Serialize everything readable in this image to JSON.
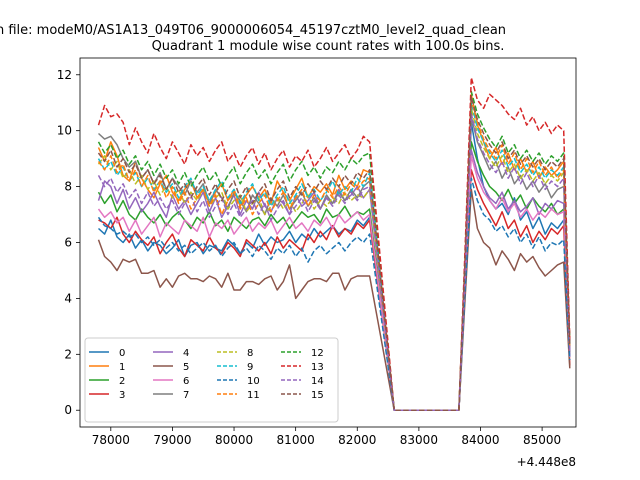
{
  "chart_data": {
    "type": "line",
    "suptitle": "n file: modeM0/AS1A13_049T06_9000006054_45197cztM0_level2_quad_clean",
    "title": "Quadrant 1 module wise count rates with 100.0s bins.",
    "xlabel": "",
    "ylabel": "",
    "x_offset_label": "+4.448e8",
    "xlim": [
      77500,
      85550
    ],
    "ylim": [
      -0.6,
      12.6
    ],
    "xticks": [
      78000,
      79000,
      80000,
      81000,
      82000,
      83000,
      84000,
      85000
    ],
    "xtick_labels": [
      "78000",
      "79000",
      "80000",
      "81000",
      "82000",
      "83000",
      "84000",
      "85000"
    ],
    "yticks": [
      0,
      2,
      4,
      6,
      8,
      10,
      12
    ],
    "ytick_labels": [
      "0",
      "2",
      "4",
      "6",
      "8",
      "10",
      "12"
    ],
    "grid": false,
    "legend_position": "lower-left",
    "legend_columns": 4,
    "x_start": 77800,
    "x_step": 100,
    "gap_start": 82600,
    "gap_end": 83650,
    "series": [
      {
        "name": "0",
        "color": "#1f77b4",
        "dash": "solid",
        "values1": [
          6.5,
          6.3,
          6.8,
          6.2,
          6.0,
          6.3,
          5.8,
          6.1,
          5.7,
          6.0,
          5.9,
          5.6,
          5.8,
          6.1,
          5.5,
          5.9,
          6.0,
          5.6,
          5.9,
          5.8,
          5.7,
          6.1,
          5.9,
          5.6,
          6.0,
          5.8,
          6.3,
          5.9,
          6.2,
          6.0,
          6.1,
          6.4,
          6.0,
          6.3,
          6.1,
          6.5,
          6.2,
          6.4,
          6.6,
          6.3,
          6.5,
          6.4,
          6.8,
          6.6,
          6.9
        ],
        "values2": [
          4.5,
          10.3,
          9.0,
          8.0,
          7.5,
          7.2,
          7.4,
          7.0,
          7.6,
          6.8,
          7.1,
          6.5,
          6.9,
          6.3,
          6.7,
          6.5,
          6.8,
          2.0
        ]
      },
      {
        "name": "1",
        "color": "#ff7f0e",
        "dash": "solid",
        "values1": [
          9.4,
          8.9,
          9.6,
          9.1,
          8.4,
          8.2,
          8.9,
          8.3,
          7.9,
          7.6,
          8.1,
          8.4,
          7.8,
          7.5,
          7.9,
          8.2,
          7.6,
          7.9,
          7.4,
          7.8,
          8.1,
          7.5,
          7.9,
          7.3,
          7.7,
          8.0,
          7.6,
          7.9,
          7.4,
          8.2,
          7.8,
          7.5,
          7.9,
          8.3,
          7.6,
          8.0,
          7.8,
          8.1,
          7.7,
          8.4,
          7.9,
          8.2,
          8.0,
          8.6,
          8.5
        ],
        "values2": [
          5.4,
          11.3,
          10.2,
          9.6,
          9.0,
          9.4,
          8.8,
          9.2,
          8.6,
          9.0,
          8.5,
          8.9,
          8.3,
          8.7,
          8.4,
          8.6,
          8.9,
          2.3
        ]
      },
      {
        "name": "2",
        "color": "#2ca02c",
        "dash": "solid",
        "values1": [
          7.8,
          7.4,
          7.7,
          7.1,
          7.5,
          7.0,
          6.8,
          7.2,
          6.9,
          6.7,
          7.0,
          6.6,
          6.9,
          7.1,
          6.8,
          6.5,
          6.9,
          6.7,
          7.1,
          6.6,
          6.8,
          6.4,
          6.9,
          6.7,
          6.5,
          6.8,
          6.9,
          6.6,
          7.0,
          6.7,
          6.9,
          6.5,
          6.8,
          7.1,
          6.9,
          7.0,
          6.7,
          7.2,
          6.9,
          7.0,
          7.3,
          6.9,
          7.1,
          7.0,
          7.2
        ],
        "values2": [
          4.6,
          9.6,
          8.9,
          8.4,
          8.0,
          7.8,
          7.5,
          7.9,
          7.4,
          7.7,
          7.2,
          7.6,
          7.3,
          7.1,
          7.4,
          7.0,
          7.2,
          2.0
        ]
      },
      {
        "name": "3",
        "color": "#d62728",
        "dash": "solid",
        "values1": [
          6.8,
          6.7,
          6.5,
          6.9,
          6.3,
          6.0,
          6.4,
          6.1,
          5.9,
          6.2,
          5.6,
          6.0,
          6.3,
          5.8,
          5.5,
          6.1,
          5.9,
          5.7,
          6.2,
          5.8,
          5.6,
          6.0,
          5.8,
          5.5,
          6.1,
          5.9,
          5.7,
          6.0,
          5.6,
          6.2,
          5.8,
          6.1,
          5.9,
          5.7,
          6.3,
          6.0,
          6.4,
          6.1,
          6.6,
          6.2,
          6.5,
          6.3,
          6.7,
          6.5,
          6.8
        ],
        "values2": [
          4.6,
          8.6,
          7.9,
          7.4,
          7.0,
          6.6,
          7.1,
          6.5,
          6.8,
          6.2,
          6.6,
          6.0,
          6.4,
          6.1,
          6.5,
          6.3,
          6.6,
          1.6
        ]
      },
      {
        "name": "4",
        "color": "#9467bd",
        "dash": "solid",
        "values1": [
          7.5,
          8.2,
          8.0,
          7.4,
          7.9,
          7.2,
          7.6,
          7.1,
          7.4,
          7.8,
          7.3,
          6.9,
          7.7,
          7.2,
          7.5,
          7.0,
          7.4,
          7.8,
          7.1,
          7.6,
          6.9,
          7.3,
          7.7,
          7.0,
          7.5,
          7.2,
          7.8,
          7.3,
          7.1,
          7.6,
          7.4,
          7.0,
          7.7,
          7.3,
          7.5,
          7.8,
          7.2,
          7.6,
          7.4,
          7.9,
          7.5,
          7.7,
          8.0,
          7.6,
          7.9
        ],
        "values2": [
          4.7,
          9.3,
          8.5,
          8.0,
          7.6,
          7.4,
          7.8,
          7.2,
          7.5,
          7.1,
          7.3,
          7.6,
          7.0,
          7.4,
          7.2,
          7.5,
          7.4,
          1.9
        ]
      },
      {
        "name": "5",
        "color": "#8c564b",
        "dash": "solid",
        "values1": [
          6.1,
          5.5,
          5.3,
          5.0,
          5.4,
          5.3,
          5.4,
          4.9,
          4.9,
          5.0,
          4.4,
          4.7,
          4.4,
          4.8,
          4.9,
          4.7,
          4.7,
          4.6,
          4.8,
          4.7,
          4.4,
          4.9,
          4.3,
          4.3,
          4.6,
          4.6,
          4.5,
          4.7,
          4.8,
          4.3,
          4.6,
          5.2,
          4.0,
          4.3,
          4.6,
          4.7,
          4.7,
          4.6,
          4.9,
          4.9,
          4.3,
          4.7,
          4.8,
          4.8,
          4.8
        ],
        "values2": [
          4.0,
          7.9,
          6.5,
          6.0,
          5.8,
          5.2,
          5.7,
          5.4,
          5.0,
          5.6,
          5.3,
          5.5,
          5.1,
          4.8,
          5.0,
          5.2,
          5.3,
          1.5
        ]
      },
      {
        "name": "6",
        "color": "#e377c2",
        "dash": "solid",
        "values1": [
          7.2,
          6.9,
          7.1,
          6.7,
          6.9,
          6.4,
          6.8,
          6.3,
          6.6,
          6.9,
          6.2,
          6.7,
          6.5,
          6.3,
          6.8,
          6.6,
          6.4,
          6.9,
          6.2,
          6.7,
          6.5,
          6.8,
          6.3,
          6.6,
          6.9,
          6.4,
          6.7,
          6.5,
          6.8,
          6.3,
          6.6,
          6.9,
          6.5,
          6.7,
          6.4,
          6.8,
          6.6,
          6.9,
          6.5,
          7.0,
          6.7,
          6.9,
          7.1,
          6.8,
          7.0
        ],
        "values2": [
          4.6,
          9.1,
          8.3,
          7.8,
          7.5,
          7.2,
          7.6,
          7.1,
          7.4,
          6.9,
          7.2,
          6.8,
          7.1,
          6.9,
          7.2,
          7.0,
          7.1,
          1.9
        ]
      },
      {
        "name": "7",
        "color": "#7f7f7f",
        "dash": "solid",
        "values1": [
          9.9,
          9.7,
          9.8,
          9.5,
          9.0,
          8.7,
          8.9,
          8.3,
          8.6,
          8.1,
          8.5,
          7.9,
          8.3,
          8.0,
          7.7,
          8.2,
          7.8,
          8.1,
          7.4,
          7.9,
          7.6,
          7.2,
          7.8,
          7.5,
          7.1,
          7.7,
          7.4,
          7.0,
          7.6,
          7.3,
          7.7,
          7.2,
          7.5,
          7.8,
          7.3,
          7.6,
          7.2,
          7.7,
          7.4,
          7.8,
          7.5,
          7.9,
          7.6,
          8.0,
          8.2
        ],
        "values2": [
          5.2,
          10.5,
          9.6,
          9.1,
          8.6,
          8.9,
          8.3,
          8.7,
          8.1,
          8.4,
          7.9,
          8.2,
          7.8,
          8.1,
          7.6,
          7.9,
          8.0,
          2.1
        ]
      },
      {
        "name": "8",
        "color": "#bcbd22",
        "dash": "dashed",
        "values1": [
          8.8,
          9.1,
          8.6,
          8.9,
          8.3,
          8.6,
          8.1,
          8.4,
          7.9,
          8.2,
          7.7,
          8.0,
          7.6,
          7.9,
          7.4,
          7.8,
          7.5,
          7.9,
          7.3,
          7.6,
          7.8,
          7.2,
          7.5,
          7.7,
          7.1,
          7.4,
          7.6,
          7.0,
          7.3,
          7.6,
          7.2,
          7.5,
          7.1,
          7.4,
          7.7,
          7.2,
          7.5,
          7.3,
          7.6,
          7.4,
          7.8,
          7.5,
          7.7,
          7.6,
          7.9
        ],
        "values2": [
          5.1,
          10.8,
          9.9,
          9.4,
          9.0,
          8.7,
          9.1,
          8.5,
          8.8,
          8.3,
          8.6,
          8.2,
          8.5,
          8.1,
          8.4,
          8.2,
          8.5,
          2.2
        ]
      },
      {
        "name": "9",
        "color": "#17becf",
        "dash": "dashed",
        "values1": [
          9.0,
          8.6,
          8.9,
          8.4,
          8.7,
          8.2,
          8.5,
          8.0,
          8.3,
          7.9,
          8.2,
          7.8,
          8.1,
          7.6,
          8.0,
          8.3,
          7.7,
          8.0,
          7.5,
          7.9,
          8.2,
          7.6,
          7.9,
          7.4,
          7.8,
          8.1,
          7.5,
          7.8,
          7.3,
          7.7,
          8.0,
          7.4,
          7.7,
          8.1,
          7.6,
          7.9,
          7.5,
          7.8,
          8.2,
          7.7,
          8.0,
          7.8,
          8.3,
          8.0,
          8.5
        ],
        "values2": [
          5.2,
          11.0,
          10.1,
          9.6,
          9.2,
          8.9,
          9.3,
          8.7,
          9.0,
          8.5,
          8.8,
          8.4,
          8.7,
          8.3,
          8.6,
          8.4,
          8.7,
          2.3
        ]
      },
      {
        "name": "10",
        "color": "#1f77b4",
        "dash": "dashed",
        "values1": [
          6.9,
          6.6,
          6.5,
          6.3,
          6.4,
          6.2,
          6.3,
          6.0,
          6.2,
          5.9,
          6.1,
          5.8,
          6.0,
          5.7,
          5.9,
          5.6,
          5.8,
          6.0,
          5.7,
          5.9,
          5.5,
          5.8,
          6.0,
          5.6,
          5.8,
          5.5,
          5.9,
          5.7,
          5.4,
          5.8,
          5.6,
          5.9,
          5.5,
          5.8,
          5.3,
          5.7,
          5.9,
          5.6,
          5.8,
          6.0,
          5.7,
          6.0,
          6.2,
          6.0,
          6.3
        ],
        "values2": [
          4.3,
          8.3,
          7.5,
          7.0,
          6.8,
          6.4,
          6.6,
          6.2,
          6.5,
          6.0,
          6.3,
          5.8,
          6.2,
          5.7,
          6.0,
          5.9,
          6.1,
          1.8
        ]
      },
      {
        "name": "11",
        "color": "#ff7f0e",
        "dash": "dashed",
        "values1": [
          8.9,
          8.6,
          9.1,
          8.5,
          8.8,
          8.2,
          8.6,
          8.0,
          8.4,
          7.8,
          8.2,
          7.6,
          8.0,
          7.4,
          7.8,
          7.2,
          7.6,
          7.9,
          7.3,
          7.7,
          7.0,
          7.5,
          7.8,
          7.2,
          7.6,
          7.0,
          7.4,
          7.7,
          7.1,
          7.5,
          7.8,
          7.2,
          7.6,
          7.9,
          7.3,
          7.7,
          7.5,
          7.9,
          7.6,
          8.0,
          7.7,
          8.1,
          7.9,
          8.2,
          8.3
        ],
        "values2": [
          5.3,
          11.1,
          10.3,
          9.7,
          9.3,
          9.0,
          9.5,
          8.8,
          9.2,
          8.6,
          9.0,
          8.5,
          8.9,
          8.4,
          8.7,
          8.3,
          8.6,
          2.2
        ]
      },
      {
        "name": "12",
        "color": "#2ca02c",
        "dash": "dashed",
        "values1": [
          9.6,
          9.2,
          9.5,
          9.0,
          9.3,
          8.8,
          9.1,
          8.6,
          8.9,
          8.4,
          8.8,
          8.3,
          8.6,
          8.1,
          8.5,
          8.0,
          8.4,
          8.7,
          8.2,
          8.5,
          8.0,
          8.4,
          8.7,
          8.1,
          8.5,
          8.8,
          8.3,
          8.6,
          8.1,
          8.5,
          8.8,
          8.2,
          8.6,
          8.9,
          8.4,
          8.7,
          8.3,
          8.7,
          8.5,
          8.9,
          8.6,
          9.0,
          8.8,
          9.1,
          9.2
        ],
        "values2": [
          5.5,
          11.4,
          10.6,
          10.1,
          9.7,
          9.4,
          9.8,
          9.2,
          9.5,
          9.0,
          9.3,
          8.9,
          9.2,
          8.8,
          9.1,
          8.9,
          9.2,
          2.4
        ]
      },
      {
        "name": "13",
        "color": "#d62728",
        "dash": "dashed",
        "values1": [
          10.2,
          10.9,
          10.5,
          10.6,
          10.3,
          9.5,
          10.1,
          9.6,
          9.2,
          9.9,
          9.4,
          9.0,
          9.6,
          9.2,
          8.8,
          9.5,
          9.1,
          9.4,
          8.9,
          9.3,
          9.6,
          8.9,
          9.2,
          8.7,
          9.1,
          9.4,
          8.8,
          9.2,
          8.6,
          9.0,
          9.3,
          8.7,
          9.1,
          8.9,
          9.3,
          8.7,
          9.0,
          9.4,
          8.9,
          9.2,
          9.5,
          9.0,
          9.3,
          9.8,
          9.6
        ],
        "values2": [
          5.8,
          11.9,
          11.1,
          10.8,
          11.3,
          11.1,
          10.9,
          10.6,
          10.4,
          10.8,
          10.2,
          10.5,
          10.0,
          10.3,
          9.9,
          10.2,
          10.0,
          2.5
        ]
      },
      {
        "name": "14",
        "color": "#9467bd",
        "dash": "dashed",
        "values1": [
          8.4,
          8.0,
          8.3,
          7.8,
          8.1,
          7.6,
          7.9,
          7.4,
          7.8,
          7.3,
          7.6,
          7.2,
          7.5,
          7.0,
          7.4,
          7.7,
          7.1,
          7.5,
          6.9,
          7.3,
          7.6,
          7.0,
          7.4,
          6.9,
          7.2,
          7.5,
          7.0,
          7.4,
          6.8,
          7.2,
          7.5,
          7.0,
          7.3,
          7.6,
          7.1,
          7.5,
          7.2,
          7.6,
          7.3,
          7.7,
          7.4,
          7.8,
          7.5,
          7.9,
          8.0
        ],
        "values2": [
          4.9,
          10.6,
          9.7,
          9.2,
          8.8,
          8.5,
          8.9,
          8.3,
          8.7,
          8.1,
          8.5,
          8.0,
          8.4,
          7.9,
          8.2,
          8.0,
          8.3,
          2.1
        ]
      },
      {
        "name": "15",
        "color": "#8c564b",
        "dash": "dashed",
        "values1": [
          9.2,
          8.9,
          9.3,
          8.7,
          9.0,
          8.5,
          8.8,
          8.3,
          8.6,
          8.1,
          8.4,
          7.9,
          8.3,
          7.8,
          8.1,
          7.6,
          8.0,
          8.3,
          7.7,
          8.1,
          7.5,
          7.9,
          8.2,
          7.6,
          8.0,
          7.4,
          7.8,
          8.1,
          7.5,
          7.9,
          8.2,
          7.6,
          8.0,
          7.7,
          8.1,
          7.8,
          8.2,
          7.9,
          8.3,
          8.0,
          8.4,
          8.1,
          8.5,
          8.3,
          8.6
        ],
        "values2": [
          5.4,
          11.2,
          10.4,
          9.9,
          9.5,
          9.2,
          9.6,
          9.0,
          9.3,
          8.8,
          9.1,
          8.7,
          9.0,
          8.6,
          8.9,
          8.7,
          9.0,
          2.3
        ]
      }
    ]
  }
}
